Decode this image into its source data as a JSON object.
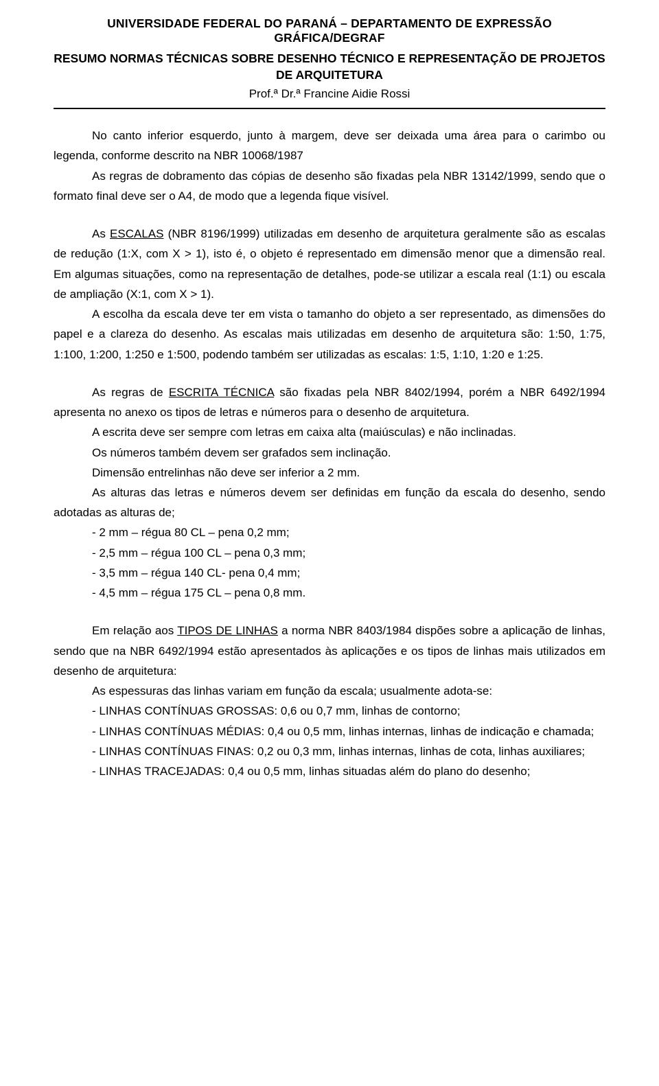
{
  "header": {
    "line1": "UNIVERSIDADE FEDERAL DO PARANÁ – DEPARTAMENTO DE EXPRESSÃO GRÁFICA/DEGRAF",
    "line2": "RESUMO NORMAS TÉCNICAS SOBRE DESENHO TÉCNICO E REPRESENTAÇÃO DE PROJETOS DE ARQUITETURA",
    "line3": "Prof.ª Dr.ª Francine Aidie Rossi"
  },
  "p1a": "No canto inferior esquerdo, junto à margem, deve ser deixada uma área para o carimbo ou legenda, conforme descrito na NBR 10068/1987",
  "p1b": "As regras de dobramento das cópias de desenho são fixadas pela NBR 13142/1999, sendo que o formato final deve ser o A4, de modo que a legenda fique visível.",
  "p2_pre": "As ",
  "p2_u": "ESCALAS",
  "p2_post": " (NBR 8196/1999) utilizadas em desenho de arquitetura geralmente são as escalas de redução (1:X, com X > 1), isto é, o objeto é representado em dimensão menor que a dimensão real. Em algumas situações, como na representação de detalhes, pode-se utilizar a escala real (1:1) ou escala de ampliação (X:1, com X > 1).",
  "p3": "A escolha da escala deve ter em vista o tamanho do objeto a ser representado, as dimensões do papel e a clareza do desenho. As escalas mais utilizadas em desenho de arquitetura são: 1:50, 1:75, 1:100, 1:200, 1:250 e 1:500, podendo também ser utilizadas as escalas: 1:5, 1:10, 1:20 e 1:25.",
  "p4_pre": "As regras de ",
  "p4_u": "ESCRITA TÉCNICA",
  "p4_post": " são fixadas pela NBR 8402/1994, porém a NBR 6492/1994 apresenta no anexo os tipos de letras e números para o desenho de arquitetura.",
  "p5": "A escrita deve ser sempre com letras em caixa alta (maiúsculas) e não inclinadas.",
  "p6": "Os números também devem ser grafados sem inclinação.",
  "p7": "Dimensão entrelinhas não deve ser inferior a 2 mm.",
  "p8": "As alturas das letras e números devem ser definidas em função da escala do desenho, sendo adotadas as alturas de;",
  "li1": "- 2 mm – régua 80 CL – pena 0,2 mm;",
  "li2": "- 2,5 mm – régua 100 CL – pena 0,3 mm;",
  "li3": "- 3,5 mm – régua 140 CL- pena 0,4 mm;",
  "li4": "- 4,5 mm – régua 175 CL – pena 0,8 mm.",
  "p9_pre": "Em relação aos ",
  "p9_u": "TIPOS DE LINHAS",
  "p9_post": " a norma NBR 8403/1984 dispões sobre a aplicação de linhas, sendo que na NBR 6492/1994 estão apresentados às aplicações e os tipos de linhas mais utilizados em desenho de arquitetura:",
  "p10": "As espessuras das linhas variam em função da escala; usualmente adota-se:",
  "l1": "- LINHAS CONTÍNUAS GROSSAS: 0,6 ou 0,7 mm, linhas de contorno;",
  "l2": "- LINHAS CONTÍNUAS MÉDIAS: 0,4 ou 0,5 mm, linhas internas, linhas de indicação e chamada;",
  "l3": "- LINHAS CONTÍNUAS FINAS: 0,2 ou 0,3 mm, linhas internas, linhas de cota, linhas auxiliares;",
  "l4": "- LINHAS TRACEJADAS: 0,4 ou 0,5 mm, linhas situadas além do plano do desenho;"
}
